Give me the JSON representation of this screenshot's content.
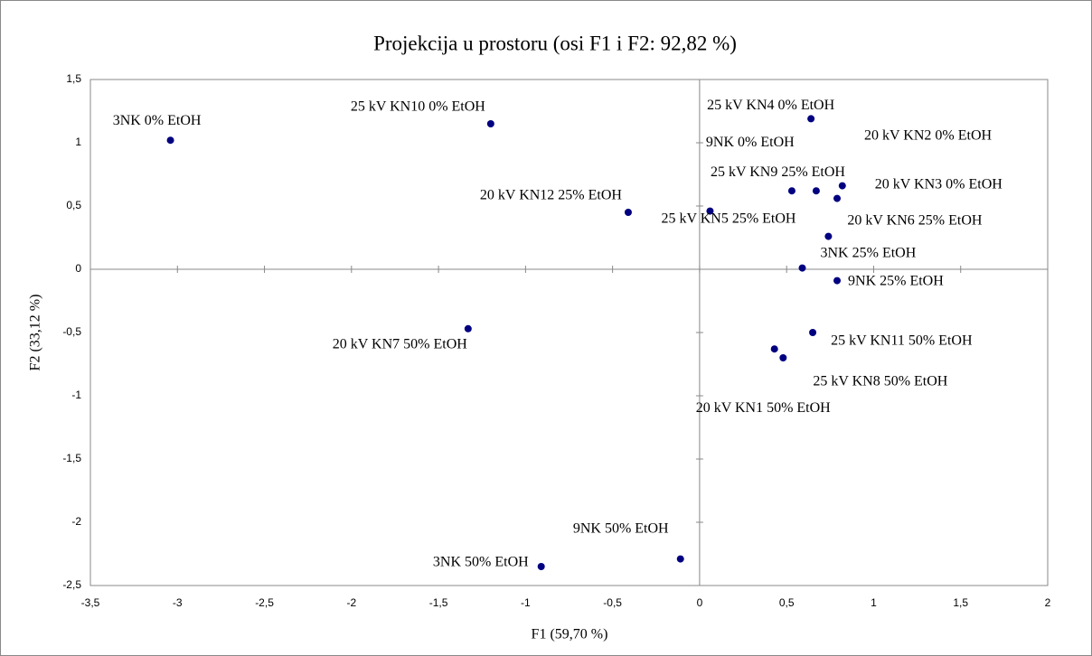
{
  "chart_data": {
    "type": "scatter",
    "title": "Projekcija u prostoru (osi F1 i F2: 92,82 %)",
    "x_label": "F1 (59,70 %)",
    "y_label": "F2 (33,12 %)",
    "color": "#000080",
    "labels": [
      "3NK 0% EtOH",
      "25 kV KN10 0% EtOH",
      "20 kV KN12 25% EtOH",
      "25 kV KN5 25% EtOH",
      "25 kV KN4 0% EtOH",
      "9NK 0% EtOH",
      "20 kV KN2 0% EtOH",
      "25 kV KN9 25% EtOH",
      "20 kV KN3 0% EtOH",
      "20 kV KN6 25% EtOH",
      "3NK 25% EtOH",
      "9NK 25% EtOH",
      "25 kV KN11 50% EtOH",
      "25 kV KN8 50% EtOH",
      "20 kV KN1 50% EtOH",
      "20 kV KN7 50% EtOH",
      "3NK 50% EtOH",
      "9NK 50% EtOH"
    ],
    "x": [
      -3.04,
      -1.2,
      -0.41,
      0.06,
      0.64,
      0.67,
      0.79,
      0.53,
      0.82,
      0.74,
      0.59,
      0.79,
      0.65,
      0.48,
      0.43,
      -1.33,
      -0.91,
      -0.11
    ],
    "y": [
      1.02,
      1.15,
      0.45,
      0.46,
      1.19,
      0.62,
      0.56,
      0.62,
      0.66,
      0.26,
      0.01,
      -0.09,
      -0.5,
      -0.7,
      -0.63,
      -0.47,
      -2.35,
      -2.29
    ],
    "xlim": [
      -3.5,
      2
    ],
    "ylim": [
      -2.5,
      1.5
    ],
    "xticks": [
      {
        "value": -3.5,
        "label": "-3,5"
      },
      -3,
      {
        "value": -2.5,
        "label": "-2,5"
      },
      -2,
      {
        "value": -1.5,
        "label": "-1,5"
      },
      -1,
      {
        "value": -0.5,
        "label": "-0,5"
      },
      0,
      {
        "value": 0.5,
        "label": "0,5"
      },
      1,
      {
        "value": 1.5,
        "label": "1,5"
      },
      2
    ],
    "yticks": [
      {
        "value": -2.5,
        "label": "-2,5"
      },
      -2,
      {
        "value": -1.5,
        "label": "-1,5"
      },
      -1,
      {
        "value": -0.5,
        "label": "-0,5"
      },
      0,
      {
        "value": 0.5,
        "label": "0,5"
      },
      1,
      {
        "value": 1.5,
        "label": "1,5"
      }
    ]
  }
}
